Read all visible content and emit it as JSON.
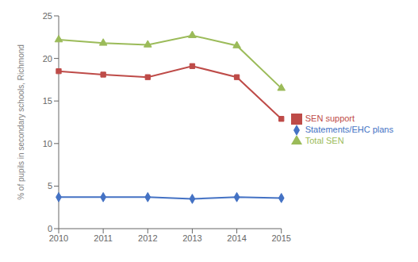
{
  "chart_data": {
    "type": "line",
    "categories": [
      "2010",
      "2011",
      "2012",
      "2013",
      "2014",
      "2015"
    ],
    "series": [
      {
        "name": "Statements/EHC plans",
        "color": "#4472C4",
        "marker": "diamond",
        "values": [
          3.7,
          3.7,
          3.7,
          3.5,
          3.7,
          3.6
        ]
      },
      {
        "name": "SEN support",
        "color": "#BE4B48",
        "marker": "square",
        "values": [
          18.5,
          18.1,
          17.8,
          19.1,
          17.8,
          12.9
        ]
      },
      {
        "name": "Total SEN",
        "color": "#9BBB59",
        "marker": "triangle",
        "values": [
          22.2,
          21.8,
          21.6,
          22.7,
          21.5,
          16.5
        ]
      }
    ],
    "ylabel": "% of pupils in secondary schools, Richmond",
    "ylim": [
      0,
      25
    ],
    "yticks": [
      0,
      5,
      10,
      15,
      20,
      25
    ],
    "legend": "right",
    "grid": false
  }
}
